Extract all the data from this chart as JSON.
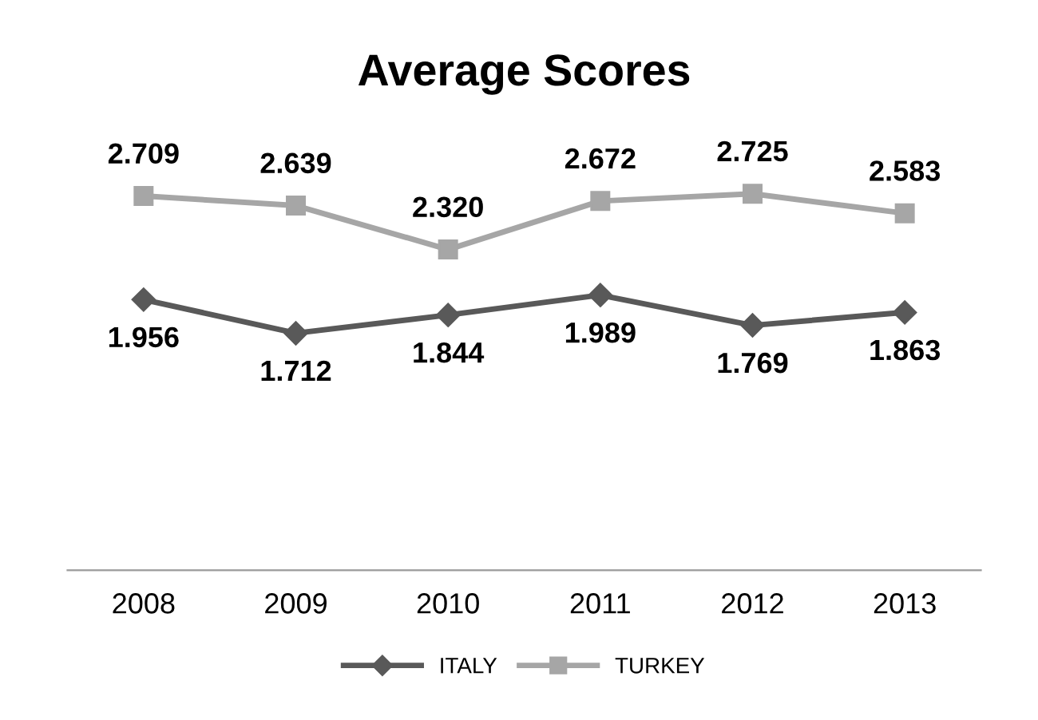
{
  "chart_data": {
    "type": "line",
    "title": "Average Scores",
    "categories": [
      "2008",
      "2009",
      "2010",
      "2011",
      "2012",
      "2013"
    ],
    "series": [
      {
        "name": "ITALY",
        "color": "#595959",
        "marker": "diamond",
        "values": [
          1.956,
          1.712,
          1.844,
          1.989,
          1.769,
          1.863
        ],
        "value_labels": [
          "1.956",
          "1.712",
          "1.844",
          "1.989",
          "1.769",
          "1.863"
        ]
      },
      {
        "name": "TURKEY",
        "color": "#a6a6a6",
        "marker": "square",
        "values": [
          2.709,
          2.639,
          2.32,
          2.672,
          2.725,
          2.583
        ],
        "value_labels": [
          "2.709",
          "2.639",
          "2.320",
          "2.672",
          "2.725",
          "2.583"
        ]
      }
    ],
    "tick_labels": "x",
    "grid": false,
    "legend": "bottom",
    "line_style": "solid"
  }
}
